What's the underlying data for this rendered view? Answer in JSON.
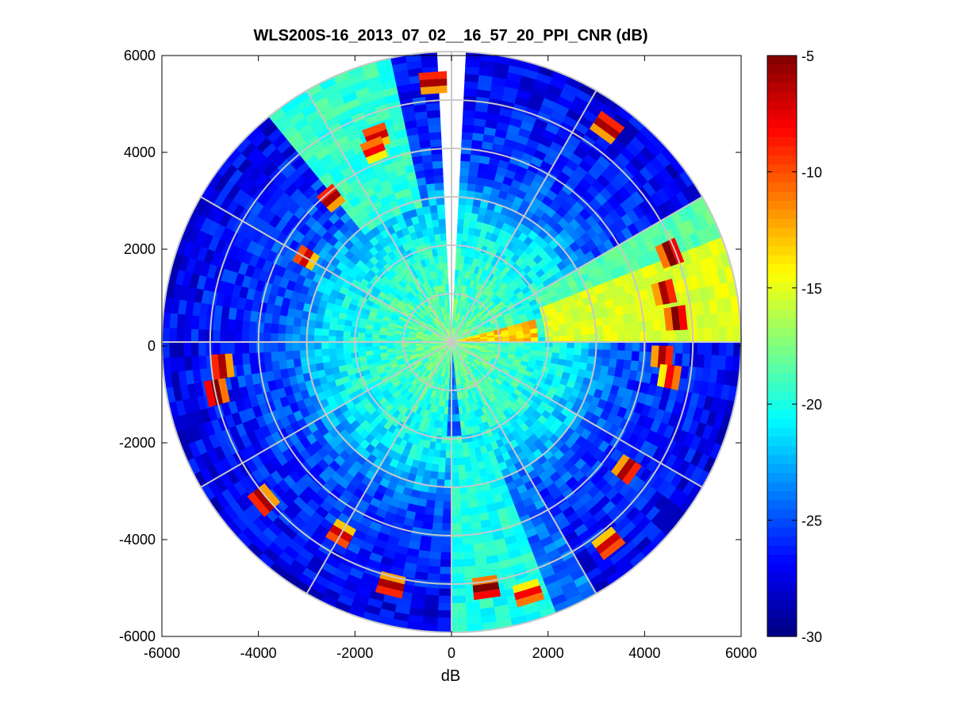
{
  "chart_data": {
    "type": "heatmap",
    "subtype": "polar PPI scan",
    "title": "WLS200S-16_2013_07_02__16_57_20_PPI_CNR (dB)",
    "xlabel": "dB",
    "ylabel": "",
    "xlim": [
      -6000,
      6000
    ],
    "ylim": [
      -6000,
      6000
    ],
    "xticks": [
      "-6000",
      "-4000",
      "-2000",
      "0",
      "2000",
      "4000",
      "6000"
    ],
    "yticks": [
      "6000",
      "4000",
      "2000",
      "0",
      "-2000",
      "-4000",
      "-6000"
    ],
    "colorbar": {
      "colormap": "jet",
      "range": [
        -30,
        -5
      ],
      "ticks": [
        "-5",
        "-10",
        "-15",
        "-20",
        "-25",
        "-30"
      ]
    },
    "polar_grid": {
      "ring_radii": [
        1000,
        2000,
        3000,
        4000,
        5000,
        6000
      ],
      "spoke_angles_deg": [
        0,
        30,
        60,
        90,
        120,
        150,
        180,
        210,
        240,
        270,
        300,
        330
      ]
    },
    "max_range": 6000,
    "gap_azimuth_deg": [
      -4,
      4
    ],
    "sectors": [
      {
        "name": "inner clear-air echo",
        "range": [
          0,
          2500
        ],
        "cnr_db": -19
      },
      {
        "name": "outer weak-signal zone",
        "range": [
          3500,
          6000
        ],
        "cnr_db": -26
      },
      {
        "name": "north-west strong sector",
        "azimuth_deg": [
          -38,
          -12
        ],
        "cnr_db": -20
      },
      {
        "name": "east high-CNR sector",
        "azimuth_deg": [
          60,
          90
        ],
        "cnr_db": -15
      },
      {
        "name": "south strong sector",
        "azimuth_deg": [
          160,
          180
        ],
        "cnr_db": -20
      }
    ],
    "hard_targets": [
      {
        "azimuth_deg": -4,
        "range": 5300,
        "cnr_db": -6
      },
      {
        "azimuth_deg": -20,
        "range": 4450,
        "cnr_db": -7
      },
      {
        "azimuth_deg": 36,
        "range": 5400,
        "cnr_db": -6
      },
      {
        "azimuth_deg": 68,
        "range": 4800,
        "cnr_db": -5
      },
      {
        "azimuth_deg": 77,
        "range": 4450,
        "cnr_db": -6
      },
      {
        "azimuth_deg": 84,
        "range": 4600,
        "cnr_db": -5
      },
      {
        "azimuth_deg": 94,
        "range": 4300,
        "cnr_db": -6
      },
      {
        "azimuth_deg": 99,
        "range": 4500,
        "cnr_db": -8
      },
      {
        "azimuth_deg": 126,
        "range": 4400,
        "cnr_db": -6
      },
      {
        "azimuth_deg": 142,
        "range": 5200,
        "cnr_db": -7
      },
      {
        "azimuth_deg": 163,
        "range": 5350,
        "cnr_db": -8
      },
      {
        "azimuth_deg": 172,
        "range": 5050,
        "cnr_db": -5
      },
      {
        "azimuth_deg": 194,
        "range": 5100,
        "cnr_db": -6
      },
      {
        "azimuth_deg": 210,
        "range": 4500,
        "cnr_db": -7
      },
      {
        "azimuth_deg": 230,
        "range": 5000,
        "cnr_db": -6
      },
      {
        "azimuth_deg": 258,
        "range": 4900,
        "cnr_db": -5
      },
      {
        "azimuth_deg": 264,
        "range": 4700,
        "cnr_db": -6
      },
      {
        "azimuth_deg": 300,
        "range": 3400,
        "cnr_db": -7
      },
      {
        "azimuth_deg": 320,
        "range": 3800,
        "cnr_db": -6
      },
      {
        "azimuth_deg": 338,
        "range": 4200,
        "cnr_db": -8
      }
    ]
  }
}
